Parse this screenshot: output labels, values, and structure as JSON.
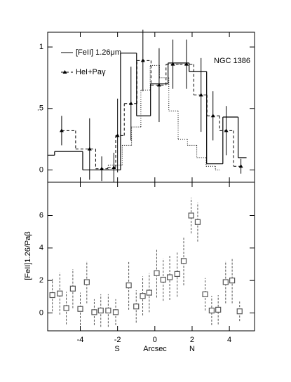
{
  "chart_data": [
    {
      "type": "line",
      "xlim": [
        -5.75,
        5.35
      ],
      "ylim": [
        -0.1,
        1.12
      ],
      "xticks": [
        -4,
        -2,
        0,
        2,
        4
      ],
      "yticks": [
        0,
        {
          "value": 0.5,
          "label": ".5"
        },
        1
      ],
      "annotation": "NGC 1386",
      "series": [
        {
          "name": "[FeII] 1.26μm",
          "color": "#000",
          "style": "solid",
          "drawstyle": "histogram",
          "bins": [
            -5.75,
            -5.38,
            -3.87,
            -2.86,
            -1.84,
            -0.98,
            -0.23,
            0.71,
            1.84,
            2.78,
            3.65,
            4.47,
            4.92
          ],
          "values": [
            0.12,
            0.15,
            0.0,
            0.0,
            0.95,
            0.44,
            0.7,
            0.87,
            0.8,
            0.05,
            0.43,
            0.1
          ]
        },
        {
          "name": "HeI+Paγ",
          "color": "#000",
          "style": "dashed",
          "drawstyle": "steps-mid",
          "marker": "triangle",
          "x": [
            -5.0,
            -3.5,
            -2.85,
            -2.2,
            -2.0,
            -1.28,
            -0.64,
            0.23,
            0.97,
            1.7,
            2.48,
            3.12,
            3.83,
            4.62
          ],
          "values": [
            0.32,
            0.17,
            0.01,
            0.02,
            0.28,
            0.54,
            0.89,
            0.69,
            0.86,
            0.86,
            0.61,
            0.44,
            0.32,
            0.03
          ],
          "errors": [
            0.12,
            0.25,
            0.1,
            0.12,
            0.3,
            0.3,
            0.25,
            0.3,
            0.2,
            0.2,
            0.3,
            0.2,
            0.2,
            0.06
          ]
        },
        {
          "color": "#000",
          "style": "dotted",
          "drawstyle": "steps-mid",
          "x": [
            -3.0,
            -2.0,
            -1.5,
            -1.0,
            -0.5,
            0.0,
            0.5,
            1.0,
            1.5,
            2.0,
            2.5,
            3.0,
            3.5
          ],
          "values": [
            0.0,
            0.04,
            0.2,
            0.35,
            0.65,
            0.85,
            0.75,
            0.48,
            0.25,
            0.2,
            0.1,
            0.03,
            0.0
          ]
        }
      ]
    },
    {
      "type": "scatter",
      "xlim": [
        -5.75,
        5.35
      ],
      "ylim": [
        -1.1,
        8.05
      ],
      "xticks": [
        -4,
        -2,
        0,
        2,
        4
      ],
      "yticks": [
        0,
        2,
        4,
        6
      ],
      "ylabel": "[FeII]1.26/Paβ",
      "xlabel": "Arcsec",
      "xlabel_left": "S",
      "xlabel_right": "N",
      "series": [
        {
          "color": "#555",
          "marker": "square",
          "x": [
            -5.5,
            -5.1,
            -4.75,
            -4.4,
            -4.0,
            -3.65,
            -3.25,
            -2.9,
            -2.5,
            -2.1,
            -1.4,
            -1.0,
            -0.65,
            -0.3,
            0.1,
            0.45,
            0.8,
            1.2,
            1.55,
            1.95,
            2.3,
            2.7,
            3.05,
            3.4,
            3.8,
            4.15,
            4.55
          ],
          "values": [
            1.1,
            1.2,
            0.3,
            1.5,
            0.25,
            1.9,
            0.05,
            0.15,
            0.15,
            0.05,
            1.7,
            0.4,
            1.05,
            1.25,
            2.45,
            2.05,
            2.2,
            2.4,
            3.2,
            6.0,
            5.6,
            1.15,
            0.15,
            0.2,
            1.9,
            2.0,
            0.1
          ],
          "errors": [
            1.0,
            1.3,
            1.0,
            1.2,
            1.0,
            1.3,
            0.8,
            1.0,
            1.0,
            0.8,
            1.5,
            1.0,
            1.2,
            1.2,
            1.5,
            1.3,
            1.4,
            1.4,
            1.5,
            1.1,
            1.2,
            1.0,
            0.9,
            0.9,
            1.3,
            1.4,
            0.6
          ]
        }
      ]
    }
  ]
}
